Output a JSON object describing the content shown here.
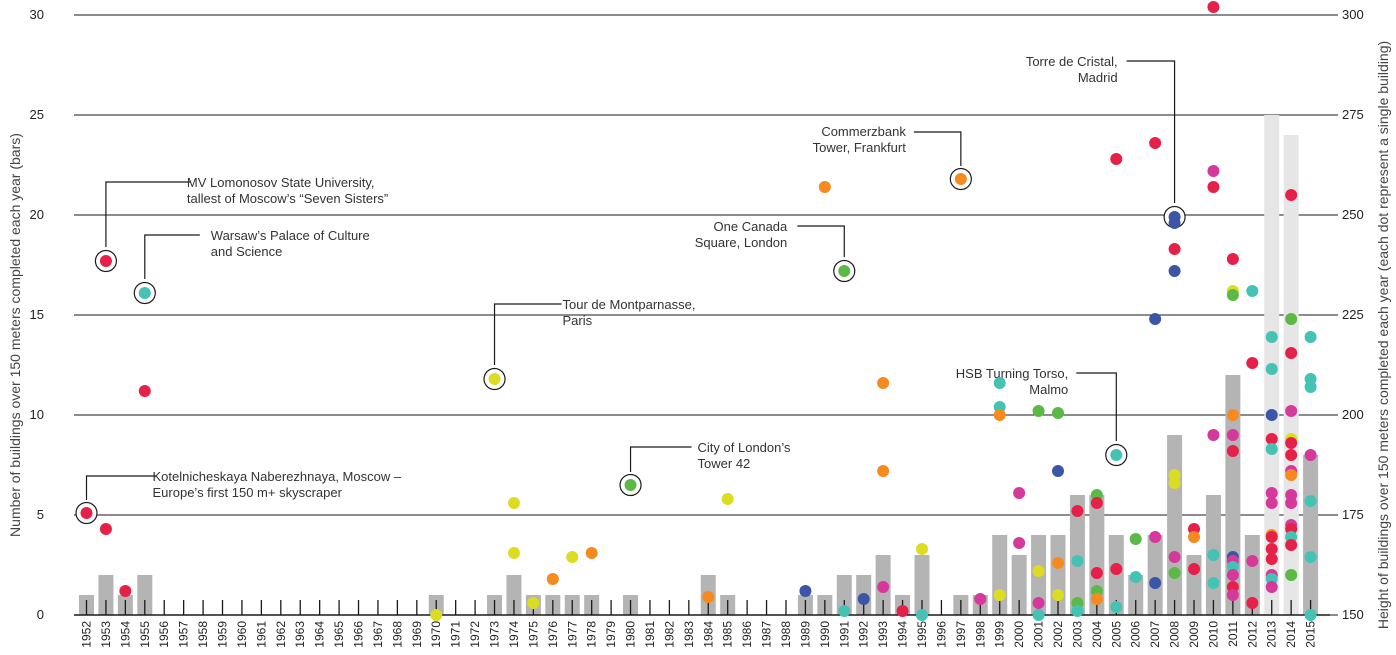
{
  "chart_data": {
    "type": "bar",
    "title": "",
    "ylabel": "Number of buildings over 150 meters completed each year (bars)",
    "ylabel_right": "Height of buildings over 150  meters completed each year (each dot represent a single building)",
    "ylim": [
      0,
      30
    ],
    "yticks": [
      0,
      5,
      10,
      15,
      20,
      25,
      30
    ],
    "ylim_right": [
      150,
      300
    ],
    "yticks_right": [
      150,
      175,
      200,
      225,
      250,
      275,
      300
    ],
    "grid": true,
    "categories": [
      "1952",
      "1953",
      "1954",
      "1955",
      "1956",
      "1957",
      "1958",
      "1959",
      "1960",
      "1961",
      "1962",
      "1963",
      "1964",
      "1965",
      "1966",
      "1967",
      "1968",
      "1969",
      "1970",
      "1971",
      "1972",
      "1973",
      "1974",
      "1975",
      "1976",
      "1977",
      "1978",
      "1979",
      "1980",
      "1981",
      "1982",
      "1983",
      "1984",
      "1985",
      "1986",
      "1987",
      "1988",
      "1989",
      "1990",
      "1991",
      "1992",
      "1993",
      "1994",
      "1995",
      "1996",
      "1997",
      "1998",
      "1999",
      "2000",
      "2001",
      "2002",
      "2003",
      "2004",
      "2005",
      "2006",
      "2007",
      "2008",
      "2009",
      "2010",
      "2011",
      "2012",
      "2013",
      "2014",
      "2015"
    ],
    "series": [
      {
        "values": [
          1,
          2,
          1,
          2,
          0,
          0,
          0,
          0,
          0,
          0,
          0,
          0,
          0,
          0,
          0,
          0,
          0,
          0,
          1,
          0,
          0,
          1,
          2,
          1,
          1,
          1,
          1,
          0,
          1,
          0,
          0,
          0,
          2,
          1,
          0,
          0,
          0,
          1,
          1,
          2,
          2,
          3,
          1,
          3,
          0,
          1,
          1,
          4,
          3,
          4,
          4,
          6,
          6,
          4,
          2,
          4,
          9,
          3,
          6,
          12,
          4,
          25,
          24,
          8
        ]
      }
    ],
    "bar_colors": {
      "default": "#b4b4b4",
      "highlight": "#e6e6e6"
    },
    "highlight_categories": [
      "2013",
      "2014"
    ],
    "point_colors": {
      "r": "#e5214a",
      "o": "#f58a1f",
      "y": "#dcdc22",
      "g": "#5bb947",
      "t": "#44c2b4",
      "p": "#d5399b",
      "b": "#3d55a6"
    },
    "points": [
      [
        "1952",
        175.5,
        "r"
      ],
      [
        "1953",
        238.5,
        "r"
      ],
      [
        "1953",
        171.5,
        "r"
      ],
      [
        "1954",
        156,
        "r"
      ],
      [
        "1955",
        230.5,
        "t"
      ],
      [
        "1955",
        206,
        "r"
      ],
      [
        "1970",
        150,
        "y"
      ],
      [
        "1973",
        209,
        "y"
      ],
      [
        "1974",
        178,
        "y"
      ],
      [
        "1974",
        165.5,
        "y"
      ],
      [
        "1975",
        153,
        "y"
      ],
      [
        "1976",
        159,
        "o"
      ],
      [
        "1977",
        164.5,
        "y"
      ],
      [
        "1978",
        165.5,
        "o"
      ],
      [
        "1980",
        182.5,
        "g"
      ],
      [
        "1984",
        154.5,
        "o"
      ],
      [
        "1985",
        179,
        "y"
      ],
      [
        "1989",
        156,
        "b"
      ],
      [
        "1990",
        257,
        "o"
      ],
      [
        "1991",
        236,
        "g"
      ],
      [
        "1991",
        151,
        "t"
      ],
      [
        "1992",
        154,
        "b"
      ],
      [
        "1993",
        208,
        "o"
      ],
      [
        "1993",
        186,
        "o"
      ],
      [
        "1993",
        157,
        "p"
      ],
      [
        "1994",
        151,
        "r"
      ],
      [
        "1995",
        150,
        "t"
      ],
      [
        "1995",
        166.5,
        "y"
      ],
      [
        "1997",
        259,
        "o"
      ],
      [
        "1998",
        154,
        "p"
      ],
      [
        "1999",
        208,
        "t"
      ],
      [
        "1999",
        202,
        "t"
      ],
      [
        "1999",
        200,
        "o"
      ],
      [
        "1999",
        155,
        "y"
      ],
      [
        "2000",
        168,
        "p"
      ],
      [
        "2000",
        180.5,
        "p"
      ],
      [
        "2001",
        201,
        "g"
      ],
      [
        "2001",
        161,
        "y"
      ],
      [
        "2001",
        153,
        "p"
      ],
      [
        "2001",
        150,
        "t"
      ],
      [
        "2002",
        200.5,
        "g"
      ],
      [
        "2002",
        186,
        "b"
      ],
      [
        "2002",
        163,
        "o"
      ],
      [
        "2002",
        155,
        "y"
      ],
      [
        "2003",
        176,
        "r"
      ],
      [
        "2003",
        163.5,
        "t"
      ],
      [
        "2003",
        153,
        "g"
      ],
      [
        "2003",
        151,
        "t"
      ],
      [
        "2004",
        180,
        "g"
      ],
      [
        "2004",
        178,
        "r"
      ],
      [
        "2004",
        160.5,
        "r"
      ],
      [
        "2004",
        156,
        "g"
      ],
      [
        "2004",
        154,
        "o"
      ],
      [
        "2005",
        264,
        "r"
      ],
      [
        "2005",
        190,
        "t"
      ],
      [
        "2005",
        161.5,
        "r"
      ],
      [
        "2005",
        152,
        "t"
      ],
      [
        "2006",
        169,
        "g"
      ],
      [
        "2006",
        159.5,
        "t"
      ],
      [
        "2007",
        268,
        "r"
      ],
      [
        "2007",
        224,
        "b"
      ],
      [
        "2007",
        169.5,
        "p"
      ],
      [
        "2007",
        158,
        "b"
      ],
      [
        "2008",
        249.5,
        "b"
      ],
      [
        "2008",
        248,
        "b"
      ],
      [
        "2008",
        241.5,
        "r"
      ],
      [
        "2008",
        236,
        "b"
      ],
      [
        "2008",
        185,
        "y"
      ],
      [
        "2008",
        183,
        "y"
      ],
      [
        "2008",
        164.5,
        "p"
      ],
      [
        "2008",
        160.5,
        "g"
      ],
      [
        "2009",
        171.5,
        "r"
      ],
      [
        "2009",
        169.5,
        "o"
      ],
      [
        "2009",
        161.5,
        "r"
      ],
      [
        "2010",
        302,
        "r"
      ],
      [
        "2010",
        261,
        "p"
      ],
      [
        "2010",
        257,
        "r"
      ],
      [
        "2010",
        195,
        "p"
      ],
      [
        "2010",
        165,
        "t"
      ],
      [
        "2010",
        158,
        "t"
      ],
      [
        "2011",
        239,
        "r"
      ],
      [
        "2011",
        231,
        "y"
      ],
      [
        "2011",
        230,
        "g"
      ],
      [
        "2011",
        200,
        "o"
      ],
      [
        "2011",
        195,
        "p"
      ],
      [
        "2011",
        191,
        "r"
      ],
      [
        "2011",
        164.5,
        "b"
      ],
      [
        "2011",
        163.5,
        "p"
      ],
      [
        "2011",
        162,
        "t"
      ],
      [
        "2011",
        160,
        "p"
      ],
      [
        "2011",
        157,
        "r"
      ],
      [
        "2011",
        155,
        "p"
      ],
      [
        "2012",
        231,
        "t"
      ],
      [
        "2012",
        213,
        "r"
      ],
      [
        "2012",
        163.5,
        "p"
      ],
      [
        "2012",
        153,
        "r"
      ],
      [
        "2013",
        219.5,
        "t"
      ],
      [
        "2013",
        211.5,
        "t"
      ],
      [
        "2013",
        200,
        "b"
      ],
      [
        "2013",
        194,
        "r"
      ],
      [
        "2013",
        191.5,
        "t"
      ],
      [
        "2013",
        180.5,
        "p"
      ],
      [
        "2013",
        178,
        "p"
      ],
      [
        "2013",
        170,
        "o"
      ],
      [
        "2013",
        169.5,
        "r"
      ],
      [
        "2013",
        166.5,
        "r"
      ],
      [
        "2013",
        164,
        "r"
      ],
      [
        "2013",
        160,
        "p"
      ],
      [
        "2013",
        159,
        "t"
      ],
      [
        "2013",
        157,
        "p"
      ],
      [
        "2014",
        255,
        "r"
      ],
      [
        "2014",
        224,
        "g"
      ],
      [
        "2014",
        215.5,
        "r"
      ],
      [
        "2014",
        201,
        "p"
      ],
      [
        "2014",
        194,
        "y"
      ],
      [
        "2014",
        193,
        "r"
      ],
      [
        "2014",
        190,
        "r"
      ],
      [
        "2014",
        186,
        "p"
      ],
      [
        "2014",
        185,
        "o"
      ],
      [
        "2014",
        180,
        "p"
      ],
      [
        "2014",
        178,
        "p"
      ],
      [
        "2014",
        172.5,
        "p"
      ],
      [
        "2014",
        171.5,
        "r"
      ],
      [
        "2014",
        169.5,
        "t"
      ],
      [
        "2014",
        167.5,
        "r"
      ],
      [
        "2014",
        160,
        "g"
      ],
      [
        "2015",
        219.5,
        "t"
      ],
      [
        "2015",
        209,
        "t"
      ],
      [
        "2015",
        207,
        "t"
      ],
      [
        "2015",
        190,
        "p"
      ],
      [
        "2015",
        178.5,
        "t"
      ],
      [
        "2015",
        164.5,
        "t"
      ],
      [
        "2015",
        150,
        "t"
      ]
    ],
    "annotations": [
      {
        "year": "1952",
        "height": 175.5,
        "lines": [
          "Kotelnicheskaya Naberezhnaya, Moscow –",
          "Europe’s first 150 m+ skyscraper"
        ]
      },
      {
        "year": "1953",
        "height": 238.5,
        "lines": [
          "MV Lomonosov State University,",
          "tallest of Moscow’s “Seven Sisters”"
        ]
      },
      {
        "year": "1955",
        "height": 230.5,
        "lines": [
          "Warsaw’s Palace of Culture",
          "and Science"
        ]
      },
      {
        "year": "1973",
        "height": 209,
        "lines": [
          "Tour de Montparnasse,",
          "Paris"
        ]
      },
      {
        "year": "1980",
        "height": 182.5,
        "lines": [
          "City of London’s",
          "Tower 42"
        ]
      },
      {
        "year": "1991",
        "height": 236,
        "lines": [
          "One Canada",
          "Square, London"
        ]
      },
      {
        "year": "1997",
        "height": 259,
        "lines": [
          "Commerzbank",
          "Tower, Frankfurt"
        ]
      },
      {
        "year": "2005",
        "height": 190,
        "lines": [
          "HSB Turning Torso,",
          "Malmo"
        ]
      },
      {
        "year": "2008",
        "height": 249.5,
        "lines": [
          "Torre de Cristal,",
          "Madrid"
        ]
      }
    ]
  }
}
